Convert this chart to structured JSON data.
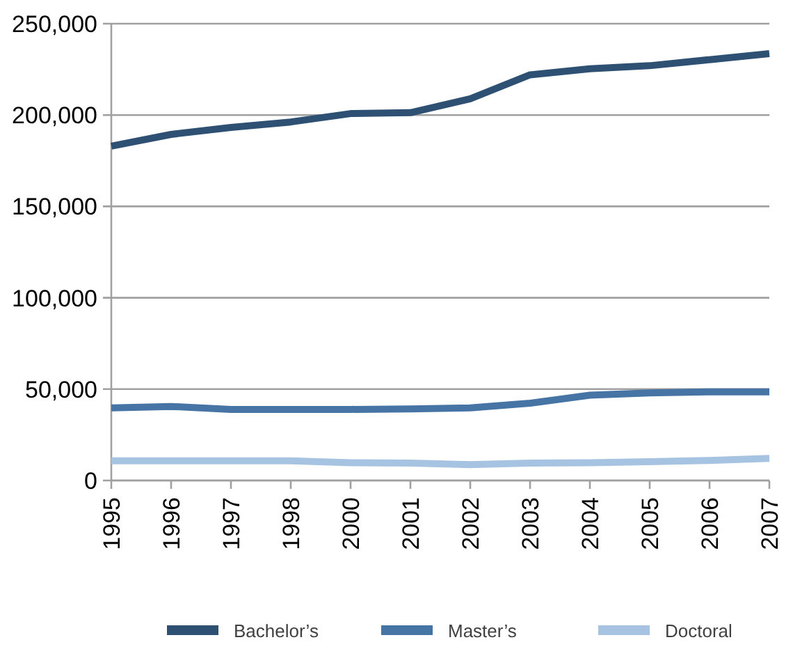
{
  "chart_data": {
    "type": "line",
    "categories": [
      "1995",
      "1996",
      "1997",
      "1998",
      "2000",
      "2001",
      "2002",
      "2003",
      "2004",
      "2005",
      "2006",
      "2007"
    ],
    "series": [
      {
        "name": "Bachelor’s",
        "color": "#2e5173",
        "values": [
          183000,
          189400,
          193200,
          196200,
          200800,
          201300,
          208900,
          222000,
          225300,
          227000,
          230300,
          233600
        ]
      },
      {
        "name": "Master’s",
        "color": "#4674a4",
        "values": [
          39700,
          40500,
          38900,
          38900,
          38900,
          39200,
          39700,
          42300,
          46700,
          47900,
          48500,
          48500
        ]
      },
      {
        "name": "Doctoral",
        "color": "#a7c3e2",
        "values": [
          10800,
          10800,
          10800,
          10800,
          9700,
          9500,
          8700,
          9500,
          9700,
          10300,
          11000,
          12100
        ]
      }
    ],
    "ylim": [
      0,
      250000
    ],
    "yticks": [
      {
        "value": 0,
        "label": "0"
      },
      {
        "value": 50000,
        "label": "50,000"
      },
      {
        "value": 100000,
        "label": "100,000"
      },
      {
        "value": 150000,
        "label": "150,000"
      },
      {
        "value": 200000,
        "label": "200,000"
      },
      {
        "value": 250000,
        "label": "250,000"
      }
    ],
    "grid": "y",
    "legend": "bottom",
    "marker": "none",
    "line_style": "solid"
  }
}
